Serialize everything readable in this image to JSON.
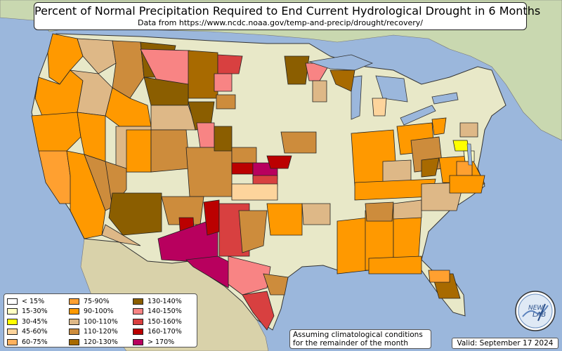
{
  "header": {
    "title": "Percent of Normal Precipitation Required to End Current Hydrological Drought in 6 Months",
    "subtitle": "Data from https://www.ncdc.noaa.gov/temp-and-precip/drought/recovery/"
  },
  "legend": {
    "items": [
      {
        "label": "< 15%",
        "color": "#ffffff"
      },
      {
        "label": "15-30%",
        "color": "#ffffc4"
      },
      {
        "label": "30-45%",
        "color": "#ffff00"
      },
      {
        "label": "45-60%",
        "color": "#fdd49c"
      },
      {
        "label": "60-75%",
        "color": "#ffb15e"
      },
      {
        "label": "75-90%",
        "color": "#ffa030"
      },
      {
        "label": "90-100%",
        "color": "#ff9900"
      },
      {
        "label": "100-110%",
        "color": "#deb887"
      },
      {
        "label": "110-120%",
        "color": "#cd8c3c"
      },
      {
        "label": "120-130%",
        "color": "#a86a00"
      },
      {
        "label": "130-140%",
        "color": "#8b5e00"
      },
      {
        "label": "140-150%",
        "color": "#f88484"
      },
      {
        "label": "150-160%",
        "color": "#d84040"
      },
      {
        "label": "160-170%",
        "color": "#bb0000"
      },
      {
        "label": "> 170%",
        "color": "#b8005e"
      }
    ]
  },
  "footer": {
    "note_line1": "Assuming climatological conditions",
    "note_line2": "for the remainder of the month",
    "valid": "Valid: September 17 2024"
  },
  "logo": {
    "text_top": "NEW",
    "text_bottom": "LAB"
  },
  "map": {
    "ocean_color": "#9bb7dc",
    "land_color": "#e8e8c8",
    "canada_color": "#c9d8b0",
    "mexico_color": "#d9d2aa"
  }
}
